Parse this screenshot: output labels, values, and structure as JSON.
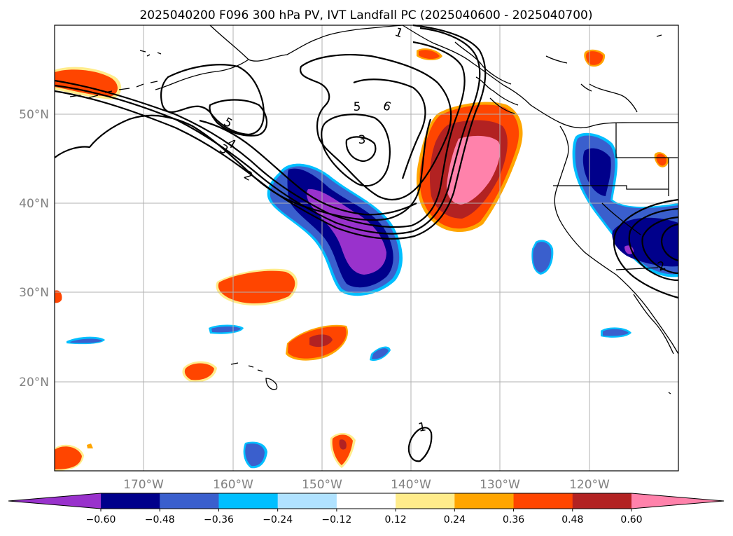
{
  "title": "2025040200 F096 300 hPa PV, IVT Landfall PC (2025040600 - 2025040700)",
  "axes": {
    "lon_labels": [
      "170°W",
      "160°W",
      "150°W",
      "140°W",
      "130°W",
      "120°W"
    ],
    "lat_labels": [
      "50°N",
      "40°N",
      "30°N",
      "20°N"
    ]
  },
  "colorbar": {
    "ticks": [
      "−0.60",
      "−0.48",
      "−0.36",
      "−0.24",
      "−0.12",
      "0.12",
      "0.24",
      "0.36",
      "0.48",
      "0.60"
    ],
    "colors": [
      "#9932cc",
      "#00008b",
      "#3a5fcd",
      "#00bfff",
      "#b0e2ff",
      "#ffffff",
      "#ffec8b",
      "#ffa500",
      "#ff4500",
      "#b22222",
      "#ff82ab"
    ]
  },
  "contour_labels": [
    "1",
    "2",
    "3",
    "4",
    "5",
    "6",
    "5",
    "3",
    "2",
    "1"
  ],
  "chart_data": {
    "type": "heatmap",
    "map": "North Pacific / western North America",
    "lon_range": [
      "180°W",
      "110°W"
    ],
    "lat_range": [
      "10°N",
      "60°N"
    ],
    "grid": true,
    "levels": [
      -0.6,
      -0.48,
      -0.36,
      -0.24,
      -0.12,
      0.12,
      0.24,
      0.36,
      0.48,
      0.6
    ],
    "colorbar": "horizontal, bottom, extends both ends"
  }
}
